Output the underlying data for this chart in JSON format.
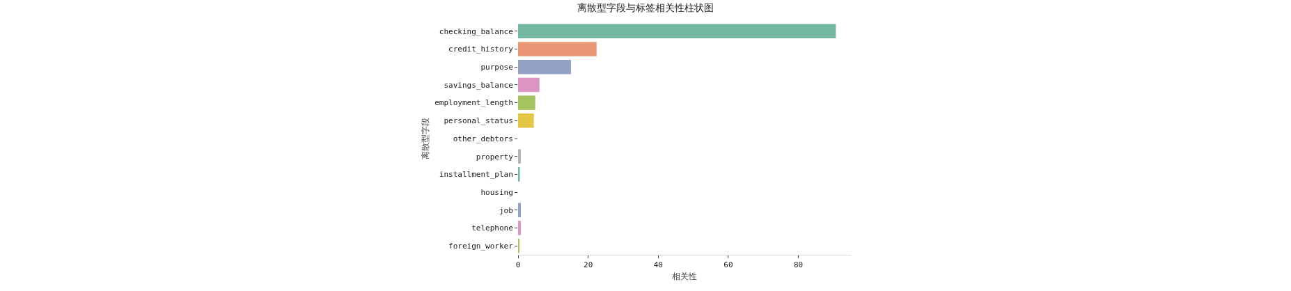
{
  "chart_data": {
    "type": "bar",
    "orientation": "horizontal",
    "title": "离散型字段与标签相关性柱状图",
    "xlabel": "相关性",
    "ylabel": "离散型字段",
    "categories": [
      "checking_balance",
      "credit_history",
      "purpose",
      "savings_balance",
      "employment_length",
      "personal_status",
      "other_debtors",
      "property",
      "installment_plan",
      "housing",
      "job",
      "telephone",
      "foreign_worker"
    ],
    "values": [
      90.7,
      22.4,
      15.1,
      6.1,
      4.9,
      4.5,
      0,
      0.8,
      0.5,
      0,
      0.8,
      0.8,
      0.3
    ],
    "colors": [
      "#73b6a1",
      "#e99674",
      "#93a3c6",
      "#dc95c3",
      "#a3c45e",
      "#e3c744",
      "#d7c196",
      "#b3b3b3",
      "#73b6a1",
      "#e99674",
      "#93a3c6",
      "#dc95c3",
      "#a3c45e"
    ],
    "xlim": [
      0,
      95
    ],
    "xticks": [
      0,
      20,
      40,
      60,
      80
    ],
    "grid": false
  }
}
